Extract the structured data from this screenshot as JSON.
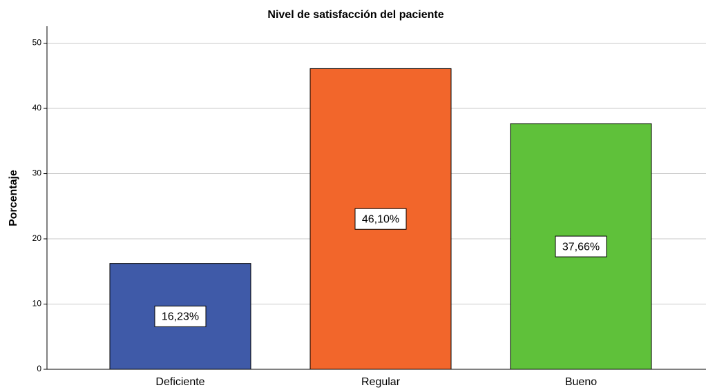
{
  "chart_data": {
    "type": "bar",
    "title": "Nivel de satisfacción del paciente",
    "y_label": "Porcentaje",
    "categories": [
      "Deficiente",
      "Regular",
      "Bueno"
    ],
    "values": [
      16.23,
      46.1,
      37.66
    ],
    "value_labels": [
      "16,23%",
      "46,10%",
      "37,66%"
    ],
    "colors": [
      "#3f5aa8",
      "#f2662b",
      "#5fc13a"
    ],
    "ylim": [
      0,
      52.6
    ],
    "yticks": [
      0,
      10,
      20,
      30,
      40,
      50
    ],
    "grid": true
  }
}
